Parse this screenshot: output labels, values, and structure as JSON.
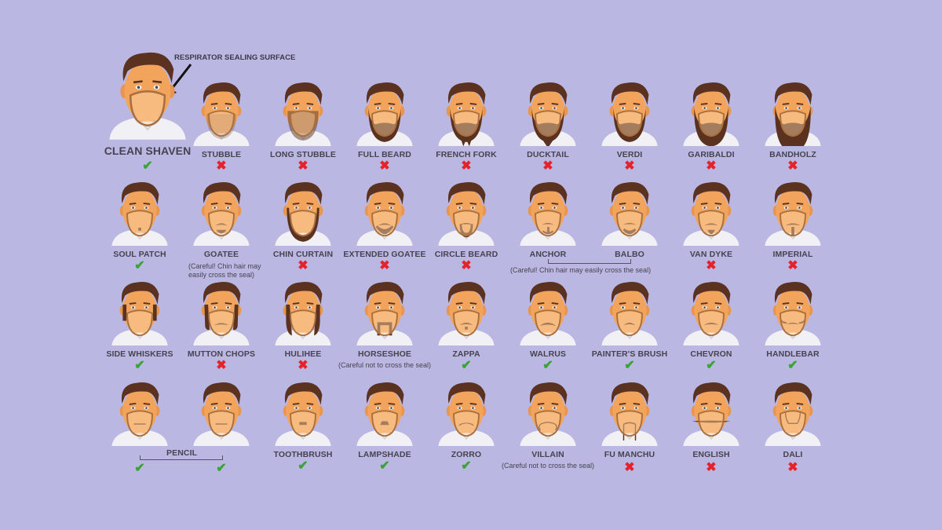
{
  "callout": {
    "text": "RESPIRATOR SEALING SURFACE"
  },
  "clean_shaven": {
    "label": "CLEAN SHAVEN",
    "ok": true
  },
  "rows": [
    [
      {
        "label": "STUBBLE",
        "ok": false
      },
      {
        "label": "LONG STUBBLE",
        "ok": false
      },
      {
        "label": "FULL BEARD",
        "ok": false
      },
      {
        "label": "FRENCH FORK",
        "ok": false
      },
      {
        "label": "DUCKTAIL",
        "ok": false
      },
      {
        "label": "VERDI",
        "ok": false
      },
      {
        "label": "GARIBALDI",
        "ok": false
      },
      {
        "label": "BANDHOLZ",
        "ok": false
      }
    ],
    [
      {
        "label": "SOUL PATCH",
        "ok": true
      },
      {
        "label": "GOATEE",
        "ok": null,
        "note": "(Careful! Chin hair may easily cross the seal)"
      },
      {
        "label": "CHIN CURTAIN",
        "ok": false
      },
      {
        "label": "EXTENDED GOATEE",
        "ok": false
      },
      {
        "label": "CIRCLE BEARD",
        "ok": false
      },
      {
        "label": "ANCHOR",
        "ok": null
      },
      {
        "label": "BALBO",
        "ok": null
      },
      {
        "label": "VAN DYKE",
        "ok": false
      },
      {
        "label": "IMPERIAL",
        "ok": false
      }
    ],
    [
      {
        "label": "SIDE WHISKERS",
        "ok": true
      },
      {
        "label": "MUTTON CHOPS",
        "ok": false
      },
      {
        "label": "HULIHEE",
        "ok": false
      },
      {
        "label": "HORSESHOE",
        "ok": null,
        "note": "(Careful not to cross the seal)"
      },
      {
        "label": "ZAPPA",
        "ok": true
      },
      {
        "label": "WALRUS",
        "ok": true
      },
      {
        "label": "PAINTER'S BRUSH",
        "ok": true
      },
      {
        "label": "CHEVRON",
        "ok": true
      },
      {
        "label": "HANDLEBAR",
        "ok": true
      }
    ],
    [
      {
        "label": "",
        "ok": true
      },
      {
        "label": "",
        "ok": true
      },
      {
        "label": "TOOTHBRUSH",
        "ok": true
      },
      {
        "label": "LAMPSHADE",
        "ok": true
      },
      {
        "label": "ZORRO",
        "ok": true
      },
      {
        "label": "VILLAIN",
        "ok": null,
        "note": "(Careful not to cross the seal)"
      },
      {
        "label": "FU MANCHU",
        "ok": false
      },
      {
        "label": "ENGLISH",
        "ok": false
      },
      {
        "label": "DALI",
        "ok": false
      }
    ]
  ],
  "groups": {
    "anchor_balbo_note": "(Careful! Chin hair may easily cross the seal)",
    "pencil_label": "PENCIL"
  },
  "marks": {
    "ok": "✔",
    "no": "✖"
  },
  "colors": {
    "background": "#bbb7e3",
    "ok": "#3aa335",
    "no": "#e5232b",
    "hair": "#5a321f",
    "skin": "#f3a45c",
    "seal": "#a8703f"
  }
}
